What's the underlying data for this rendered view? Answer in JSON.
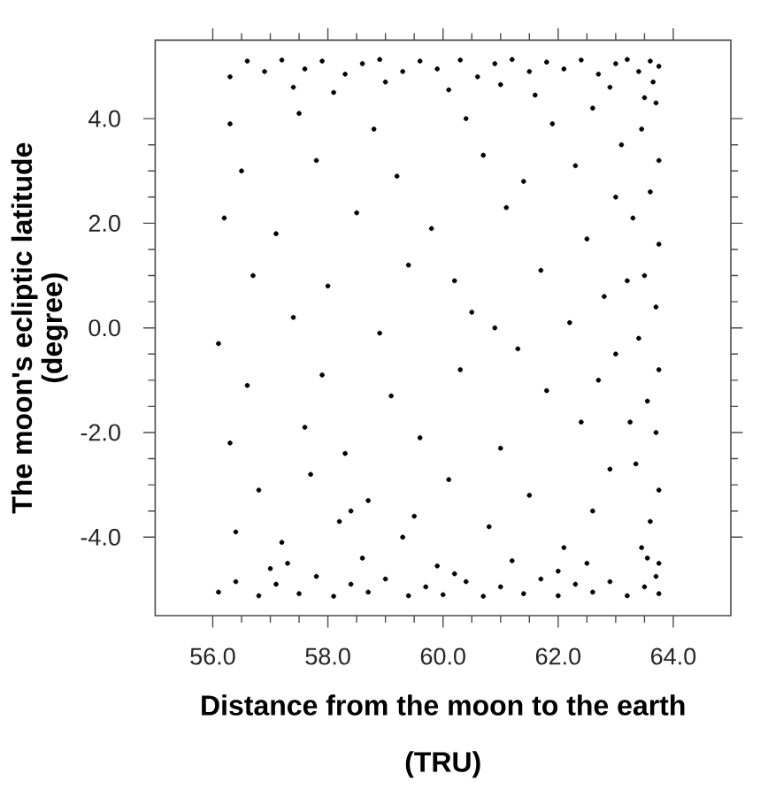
{
  "chart_data": {
    "type": "scatter",
    "xlabel": "Distance from the moon to the earth (TRU)",
    "ylabel": "The moon's ecliptic latitude (degree)",
    "color": "#000000",
    "marker": "circle",
    "xlim": [
      55,
      65
    ],
    "ylim": [
      -5.5,
      5.5
    ],
    "xticks": [
      {
        "value": 56,
        "label": "56.0"
      },
      {
        "value": 58,
        "label": "58.0"
      },
      {
        "value": 60,
        "label": "60.0"
      },
      {
        "value": 62,
        "label": "62.0"
      },
      {
        "value": 64,
        "label": "64.0"
      }
    ],
    "yticks": [
      {
        "value": -4,
        "label": "-4.0"
      },
      {
        "value": -2,
        "label": "-2.0"
      },
      {
        "value": 0,
        "label": "0.0"
      },
      {
        "value": 2,
        "label": "2.0"
      },
      {
        "value": 4,
        "label": "4.0"
      }
    ],
    "x": [
      56.6,
      56.9,
      57.2,
      57.6,
      57.9,
      58.3,
      58.6,
      58.9,
      59.3,
      59.6,
      59.9,
      60.3,
      60.6,
      60.9,
      61.2,
      61.5,
      61.8,
      62.1,
      62.4,
      62.7,
      63.0,
      63.2,
      63.4,
      63.6,
      63.75,
      57.4,
      60.1,
      62.9,
      58.1,
      61.6,
      56.1,
      56.4,
      56.8,
      57.1,
      57.5,
      57.8,
      58.1,
      58.4,
      58.7,
      59.0,
      59.4,
      59.7,
      60.0,
      60.4,
      60.7,
      61.0,
      61.4,
      61.7,
      62.0,
      62.3,
      62.6,
      62.9,
      63.2,
      63.5,
      63.75,
      57.3,
      58.6,
      59.9,
      61.2,
      62.5,
      63.7,
      63.45,
      63.75,
      63.6,
      63.3,
      63.75,
      63.5,
      63.7,
      63.4,
      63.75,
      63.55,
      63.7,
      63.35,
      63.75,
      63.6,
      63.45,
      63.75,
      63.2,
      63.25,
      63.1,
      56.3,
      57.5,
      58.8,
      60.4,
      61.9,
      62.6,
      56.5,
      57.8,
      59.2,
      60.7,
      61.4,
      62.3,
      56.2,
      57.1,
      58.5,
      59.8,
      61.1,
      62.5,
      56.7,
      58.0,
      59.4,
      60.2,
      61.7,
      62.8,
      56.1,
      57.4,
      58.9,
      60.5,
      61.3,
      62.2,
      56.6,
      57.9,
      59.1,
      60.3,
      61.8,
      62.7,
      56.3,
      57.6,
      58.3,
      59.6,
      61.0,
      62.4,
      56.8,
      57.7,
      58.7,
      60.1,
      61.5,
      62.9,
      56.4,
      57.2,
      58.2,
      59.3,
      60.8,
      62.1,
      63.65,
      63.5,
      63.7,
      63.55,
      59.0,
      61.0,
      56.3,
      57.0,
      60.2,
      62.0,
      58.4,
      59.5,
      62.6,
      63.0,
      63.0,
      60.9
    ],
    "values": [
      5.1,
      4.9,
      5.12,
      4.95,
      5.1,
      4.85,
      5.05,
      5.13,
      4.9,
      5.1,
      4.95,
      5.12,
      4.8,
      5.05,
      5.13,
      4.9,
      5.08,
      4.95,
      5.12,
      4.85,
      5.05,
      5.13,
      4.9,
      5.1,
      5.0,
      4.6,
      4.55,
      4.6,
      4.5,
      4.45,
      -5.05,
      -4.85,
      -5.12,
      -4.9,
      -5.08,
      -4.75,
      -5.13,
      -4.9,
      -5.05,
      -4.8,
      -5.12,
      -4.95,
      -5.1,
      -4.85,
      -5.13,
      -4.95,
      -5.08,
      -4.8,
      -5.12,
      -4.9,
      -5.05,
      -4.85,
      -5.12,
      -4.95,
      -5.08,
      -4.5,
      -4.4,
      -4.55,
      -4.45,
      -4.5,
      4.3,
      3.8,
      3.2,
      2.6,
      2.1,
      1.6,
      1.0,
      0.4,
      -0.2,
      -0.8,
      -1.4,
      -2.0,
      -2.6,
      -3.1,
      -3.7,
      -4.2,
      -4.5,
      0.9,
      -1.8,
      3.5,
      3.9,
      4.1,
      3.8,
      4.0,
      3.9,
      4.2,
      3.0,
      3.2,
      2.9,
      3.3,
      2.8,
      3.1,
      2.1,
      1.8,
      2.2,
      1.9,
      2.3,
      1.7,
      1.0,
      0.8,
      1.2,
      0.9,
      1.1,
      0.6,
      -0.3,
      0.2,
      -0.1,
      0.3,
      -0.4,
      0.1,
      -1.1,
      -0.9,
      -1.3,
      -0.8,
      -1.2,
      -1.0,
      -2.2,
      -1.9,
      -2.4,
      -2.1,
      -2.3,
      -1.8,
      -3.1,
      -2.8,
      -3.3,
      -2.9,
      -3.2,
      -2.7,
      -3.9,
      -4.1,
      -3.7,
      -4.0,
      -3.8,
      -4.2,
      4.7,
      4.4,
      -4.75,
      -4.4,
      4.7,
      4.65,
      4.8,
      -4.6,
      -4.7,
      -4.65,
      -3.5,
      -3.6,
      -3.5,
      2.5,
      -0.5,
      0.0
    ]
  }
}
